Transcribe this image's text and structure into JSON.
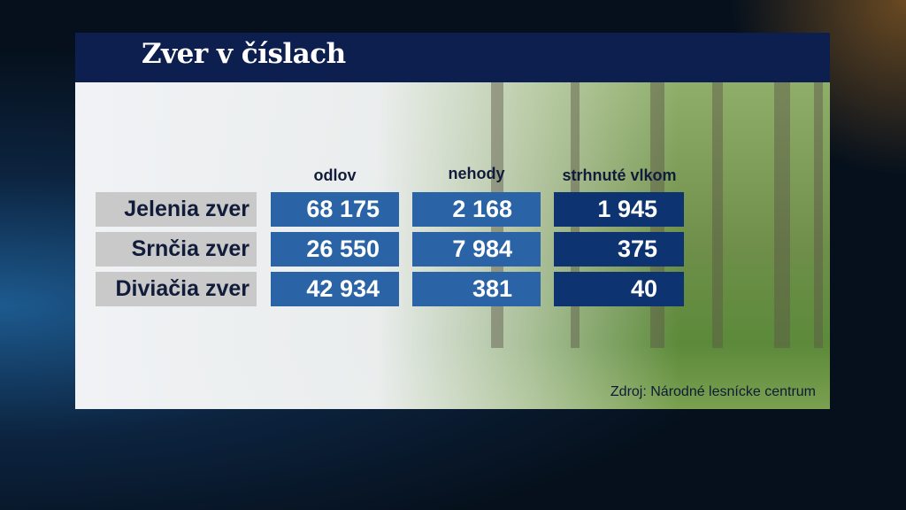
{
  "title": "Zver v číslach",
  "source": "Zdroj: Národné lesnícke centrum",
  "colors": {
    "title_bar": "#0d1f4f",
    "col_odlov": "#2a63a6",
    "col_nehody": "#2a63a6",
    "col_vlkom": "#0d3371",
    "label_bg": "#c9c9c9"
  },
  "chart_data": {
    "type": "table",
    "columns": [
      "odlov",
      "nehody",
      "strhnuté vlkom"
    ],
    "rows": [
      {
        "label": "Jelenia zver",
        "values": [
          "68 175",
          "2 168",
          "1 945"
        ]
      },
      {
        "label": "Srnčia zver",
        "values": [
          "26 550",
          "7 984",
          "375"
        ]
      },
      {
        "label": "Diviačia zver",
        "values": [
          "42 934",
          "381",
          "40"
        ]
      }
    ]
  }
}
